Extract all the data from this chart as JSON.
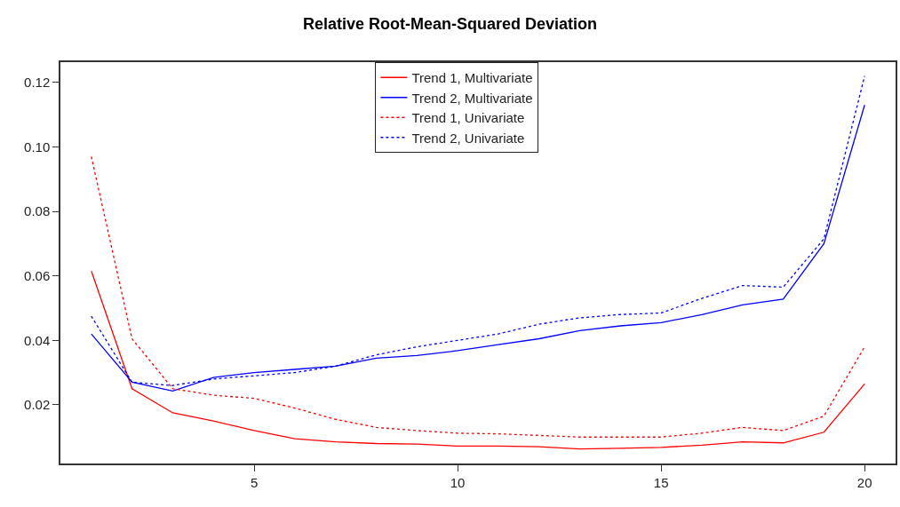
{
  "chart_data": {
    "type": "line",
    "title": "Relative Root-Mean-Squared Deviation",
    "x": [
      1,
      2,
      3,
      4,
      5,
      6,
      7,
      8,
      9,
      10,
      11,
      12,
      13,
      14,
      15,
      16,
      17,
      18,
      19,
      20
    ],
    "xlim": [
      0.24,
      20.76
    ],
    "xticks": [
      5,
      10,
      15,
      20
    ],
    "ylim": [
      0.0018,
      0.1263
    ],
    "yticks": [
      {
        "value": 0.02,
        "label": "0.02"
      },
      {
        "value": 0.04,
        "label": "0.04"
      },
      {
        "value": 0.06,
        "label": "0.06"
      },
      {
        "value": 0.08,
        "label": "0.08"
      },
      {
        "value": 0.1,
        "label": "0.10"
      },
      {
        "value": 0.12,
        "label": "0.12"
      }
    ],
    "legend": "top",
    "marker": "none",
    "series": [
      {
        "name": "Trend 1, Multivariate",
        "color": "#ff0000",
        "line_style": "solid",
        "values": [
          0.0615,
          0.025,
          0.0175,
          0.015,
          0.012,
          0.0095,
          0.0085,
          0.008,
          0.0078,
          0.0072,
          0.0072,
          0.007,
          0.0063,
          0.0065,
          0.0068,
          0.0075,
          0.0085,
          0.0082,
          0.0115,
          0.0265
        ]
      },
      {
        "name": "Trend 2, Multivariate",
        "color": "#0000ff",
        "line_style": "solid",
        "values": [
          0.042,
          0.027,
          0.0243,
          0.0285,
          0.03,
          0.031,
          0.032,
          0.0345,
          0.0353,
          0.0368,
          0.0387,
          0.0405,
          0.043,
          0.0445,
          0.0455,
          0.048,
          0.051,
          0.0528,
          0.07,
          0.113
        ]
      },
      {
        "name": "Trend 1, Univariate",
        "color": "#ff0000",
        "line_style": "dotted",
        "values": [
          0.097,
          0.0405,
          0.025,
          0.023,
          0.022,
          0.019,
          0.0155,
          0.013,
          0.012,
          0.0112,
          0.011,
          0.0105,
          0.01,
          0.01,
          0.01,
          0.0112,
          0.013,
          0.012,
          0.0165,
          0.038
        ]
      },
      {
        "name": "Trend 2, Univariate",
        "color": "#0000ff",
        "line_style": "dotted",
        "values": [
          0.0475,
          0.027,
          0.026,
          0.028,
          0.029,
          0.03,
          0.032,
          0.0355,
          0.038,
          0.04,
          0.042,
          0.045,
          0.047,
          0.048,
          0.0485,
          0.053,
          0.057,
          0.0565,
          0.0715,
          0.122
        ]
      }
    ]
  }
}
